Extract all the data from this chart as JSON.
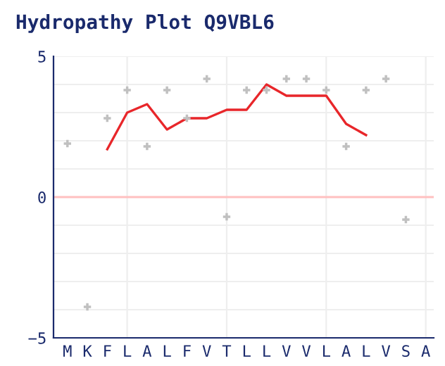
{
  "chart_data": {
    "type": "line",
    "title": "Hydropathy Plot Q9VBL6",
    "categories": [
      "M",
      "K",
      "F",
      "L",
      "A",
      "L",
      "F",
      "V",
      "T",
      "L",
      "L",
      "V",
      "V",
      "L",
      "A",
      "L",
      "V",
      "S",
      "A"
    ],
    "series": [
      {
        "type": "scatter",
        "color": "#c0c0c0",
        "marker": "cross",
        "values": [
          1.9,
          -3.9,
          2.8,
          3.8,
          1.8,
          3.8,
          2.8,
          4.2,
          -0.7,
          3.8,
          3.8,
          4.2,
          4.2,
          3.8,
          1.8,
          3.8,
          4.2,
          -0.8,
          null
        ]
      },
      {
        "color": "#e8262a",
        "marker": "none",
        "line_style": "solid",
        "values": [
          null,
          null,
          1.7,
          3.0,
          3.3,
          2.4,
          2.8,
          2.8,
          3.1,
          3.1,
          4.0,
          3.6,
          3.6,
          3.6,
          2.6,
          2.2,
          null,
          null,
          null
        ]
      }
    ],
    "ylim": [
      -5,
      5
    ],
    "yticks": [
      -5,
      {
        "value": -4,
        "label": null
      },
      {
        "value": -3,
        "label": null
      },
      {
        "value": -2,
        "label": null
      },
      {
        "value": -1,
        "label": null
      },
      0,
      {
        "value": 1,
        "label": null
      },
      {
        "value": 2,
        "label": null
      },
      {
        "value": 3,
        "label": null
      },
      {
        "value": 4,
        "label": null
      },
      5
    ],
    "ref_lines": [
      {
        "axis": "y",
        "value": 0,
        "color": "#ffc0c0"
      }
    ],
    "grid": true,
    "legend": false
  }
}
